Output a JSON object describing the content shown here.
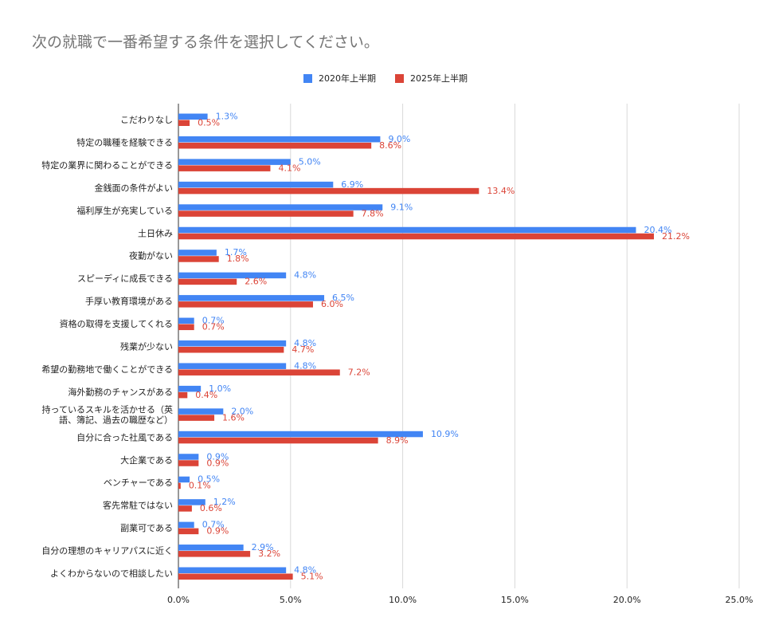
{
  "chart_data": {
    "type": "bar",
    "orientation": "horizontal",
    "title": "次の就職で一番希望する条件を選択してください。",
    "categories": [
      "こだわりなし",
      "特定の職種を経験できる",
      "特定の業界に関わることができる",
      "金銭面の条件がよい",
      "福利厚生が充実している",
      "土日休み",
      "夜勤がない",
      "スピーディに成長できる",
      "手厚い教育環境がある",
      "資格の取得を支援してくれる",
      "残業が少ない",
      "希望の勤務地で働くことができる",
      "海外勤務のチャンスがある",
      "持っているスキルを活かせる（英\n語、簿記、過去の職歴など）",
      "自分に合った社風である",
      "大企業である",
      "ベンチャーである",
      "客先常駐ではない",
      "副業可である",
      "自分の理想のキャリアパスに近く",
      "よくわからないので相談したい"
    ],
    "series": [
      {
        "name": "2020年上半期",
        "color": "#4285f4",
        "values": [
          1.3,
          9.0,
          5.0,
          6.9,
          9.1,
          20.4,
          1.7,
          4.8,
          6.5,
          0.7,
          4.8,
          4.8,
          1.0,
          2.0,
          10.9,
          0.9,
          0.5,
          1.2,
          0.7,
          2.9,
          4.8
        ],
        "labels": [
          "1.3%",
          "9.0%",
          "5.0%",
          "6.9%",
          "9.1%",
          "20.4%",
          "1.7%",
          "4.8%",
          "6.5%",
          "0.7%",
          "4.8%",
          "4.8%",
          "1.0%",
          "2.0%",
          "10.9%",
          "0.9%",
          "0.5%",
          "1.2%",
          "0.7%",
          "2.9%",
          "4.8%"
        ]
      },
      {
        "name": "2025年上半期",
        "color": "#db4437",
        "values": [
          0.5,
          8.6,
          4.1,
          13.4,
          7.8,
          21.2,
          1.8,
          2.6,
          6.0,
          0.7,
          4.7,
          7.2,
          0.4,
          1.6,
          8.9,
          0.9,
          0.1,
          0.6,
          0.9,
          3.2,
          5.1
        ],
        "labels": [
          "0.5%",
          "8.6%",
          "4.1%",
          "13.4%",
          "7.8%",
          "21.2%",
          "1.8%",
          "2.6%",
          "6.0%",
          "0.7%",
          "4.7%",
          "7.2%",
          "0.4%",
          "1.6%",
          "8.9%",
          "0.9%",
          "0.1%",
          "0.6%",
          "0.9%",
          "3.2%",
          "5.1%"
        ]
      }
    ],
    "xlim": [
      0,
      25
    ],
    "xticks": [
      "0.0%",
      "5.0%",
      "10.0%",
      "15.0%",
      "20.0%",
      "25.0%"
    ],
    "grid": true,
    "legend": "top-center"
  }
}
